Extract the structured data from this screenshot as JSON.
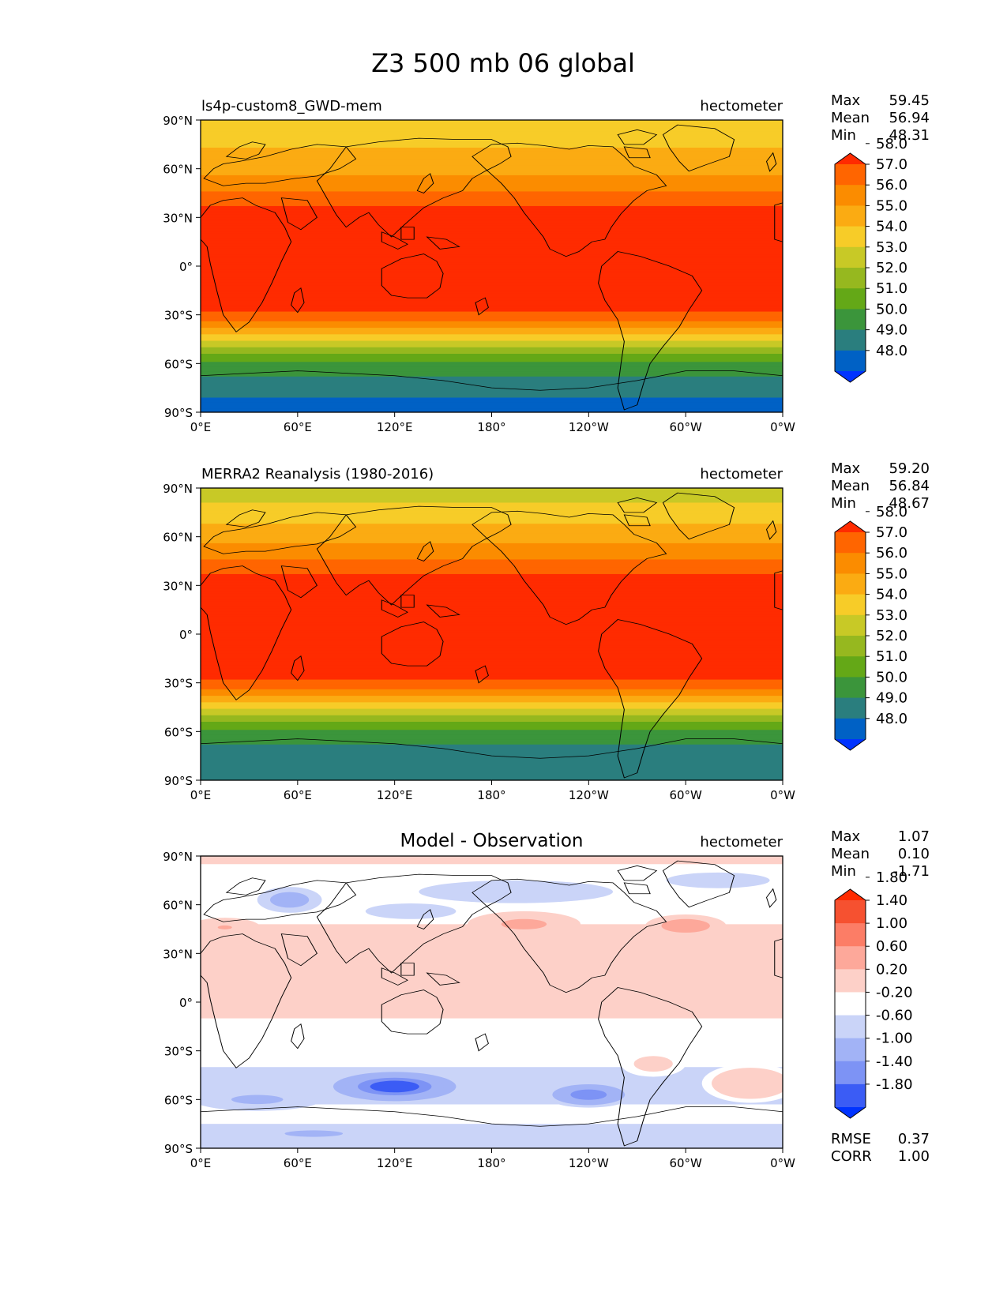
{
  "figure_title": "Z3 500 mb 06 global",
  "colors": {
    "abs_levels": [
      "#0033ff",
      "#0061c5",
      "#2a7e7e",
      "#3b953b",
      "#64a817",
      "#96b81f",
      "#c8c926",
      "#f7cc28",
      "#fbab12",
      "#fb8c00",
      "#ff6500",
      "#ff2b00"
    ],
    "diff_levels": [
      "#0033ff",
      "#3b5cf5",
      "#7d93f5",
      "#a2b3f6",
      "#cad4f8",
      "#ffffff",
      "#fdd0c8",
      "#fda89a",
      "#fc7d66",
      "#f65130",
      "#ff2b00"
    ],
    "coast": "#000000"
  },
  "chart_data": [
    {
      "type": "contour-map",
      "name": "model",
      "title_left": "ls4p-custom8_GWD-mem",
      "title_center": "",
      "units": "hectometer",
      "stats": [
        {
          "label": "Max",
          "value": "59.45"
        },
        {
          "label": "Mean",
          "value": "56.94"
        },
        {
          "label": "Min",
          "value": "48.31"
        }
      ],
      "extra_stats": [],
      "colorbar_labels": [
        "48.0",
        "49.0",
        "50.0",
        "51.0",
        "52.0",
        "53.0",
        "54.0",
        "55.0",
        "56.0",
        "57.0",
        "58.0"
      ],
      "xticks": [
        "0°E",
        "60°E",
        "120°E",
        "180°",
        "120°W",
        "60°W",
        "0°W"
      ],
      "yticks": [
        "90°N",
        "60°N",
        "30°N",
        "0°",
        "30°S",
        "60°S",
        "90°S"
      ],
      "lat_band_values": [
        {
          "lat": 90,
          "value": 54.5
        },
        {
          "lat": 75,
          "value": 54.9
        },
        {
          "lat": 60,
          "value": 55.6
        },
        {
          "lat": 50,
          "value": 56.6
        },
        {
          "lat": 40,
          "value": 57.7
        },
        {
          "lat": 30,
          "value": 58.6
        },
        {
          "lat": 0,
          "value": 58.7
        },
        {
          "lat": -25,
          "value": 58.4
        },
        {
          "lat": -32,
          "value": 57.4
        },
        {
          "lat": -40,
          "value": 55.5
        },
        {
          "lat": -48,
          "value": 53.5
        },
        {
          "lat": -56,
          "value": 51.5
        },
        {
          "lat": -65,
          "value": 50.2
        },
        {
          "lat": -75,
          "value": 49.5
        },
        {
          "lat": -82,
          "value": 48.9
        },
        {
          "lat": -90,
          "value": 48.5
        }
      ]
    },
    {
      "type": "contour-map",
      "name": "observation",
      "title_left": "MERRA2 Reanalysis (1980-2016)",
      "title_center": "",
      "units": "hectometer",
      "stats": [
        {
          "label": "Max",
          "value": "59.20"
        },
        {
          "label": "Mean",
          "value": "56.84"
        },
        {
          "label": "Min",
          "value": "48.67"
        }
      ],
      "extra_stats": [],
      "colorbar_labels": [
        "48.0",
        "49.0",
        "50.0",
        "51.0",
        "52.0",
        "53.0",
        "54.0",
        "55.0",
        "56.0",
        "57.0",
        "58.0"
      ],
      "xticks": [
        "0°E",
        "60°E",
        "120°E",
        "180°",
        "120°W",
        "60°W",
        "0°W"
      ],
      "yticks": [
        "90°N",
        "60°N",
        "30°N",
        "0°",
        "30°S",
        "60°S",
        "90°S"
      ],
      "lat_band_values": [
        {
          "lat": 90,
          "value": 53.4
        },
        {
          "lat": 80,
          "value": 54.1
        },
        {
          "lat": 70,
          "value": 54.8
        },
        {
          "lat": 60,
          "value": 55.6
        },
        {
          "lat": 50,
          "value": 56.6
        },
        {
          "lat": 40,
          "value": 57.7
        },
        {
          "lat": 30,
          "value": 58.6
        },
        {
          "lat": 0,
          "value": 58.7
        },
        {
          "lat": -25,
          "value": 58.4
        },
        {
          "lat": -32,
          "value": 57.4
        },
        {
          "lat": -40,
          "value": 55.5
        },
        {
          "lat": -48,
          "value": 53.5
        },
        {
          "lat": -56,
          "value": 51.5
        },
        {
          "lat": -65,
          "value": 50.2
        },
        {
          "lat": -75,
          "value": 49.6
        },
        {
          "lat": -90,
          "value": 49.4
        }
      ]
    },
    {
      "type": "contour-map",
      "name": "difference",
      "title_left": "",
      "title_center": "Model - Observation",
      "units": "hectometer",
      "stats": [
        {
          "label": "Max",
          "value": "1.07"
        },
        {
          "label": "Mean",
          "value": "0.10"
        },
        {
          "label": "Min",
          "value": "-1.71"
        }
      ],
      "extra_stats": [
        {
          "label": "RMSE",
          "value": "0.37"
        },
        {
          "label": "CORR",
          "value": "1.00"
        }
      ],
      "colorbar_labels": [
        "-1.80",
        "-1.40",
        "-1.00",
        "-0.60",
        "-0.20",
        "0.20",
        "0.60",
        "1.00",
        "1.40",
        "1.80"
      ],
      "xticks": [
        "0°E",
        "60°E",
        "120°E",
        "180°",
        "120°W",
        "60°W",
        "0°W"
      ],
      "yticks": [
        "90°N",
        "60°N",
        "30°N",
        "0°",
        "30°S",
        "60°S",
        "90°S"
      ],
      "lat_band_values": [
        {
          "lat": 90,
          "value": 0.3
        },
        {
          "lat": 75,
          "value": 0.0
        },
        {
          "lat": 55,
          "value": 0.1
        },
        {
          "lat": 40,
          "value": 0.3
        },
        {
          "lat": 20,
          "value": 0.3
        },
        {
          "lat": 0,
          "value": 0.3
        },
        {
          "lat": -20,
          "value": 0.1
        },
        {
          "lat": -30,
          "value": 0.0
        },
        {
          "lat": -40,
          "value": -0.2
        },
        {
          "lat": -50,
          "value": -0.45
        },
        {
          "lat": -60,
          "value": -0.3
        },
        {
          "lat": -68,
          "value": 0.0
        },
        {
          "lat": -75,
          "value": -0.2
        },
        {
          "lat": -90,
          "value": -0.3
        }
      ],
      "anomalies": [
        {
          "lon": 120,
          "lat": -52,
          "value": -1.75,
          "rlon": 38,
          "rlat": 9
        },
        {
          "lon": 240,
          "lat": -57,
          "value": -1.4,
          "rlon": 28,
          "rlat": 8
        },
        {
          "lon": 35,
          "lat": -60,
          "value": -0.75,
          "rlon": 40,
          "rlat": 7
        },
        {
          "lon": 70,
          "lat": -81,
          "value": -0.75,
          "rlon": 45,
          "rlat": 5
        },
        {
          "lon": 55,
          "lat": 63,
          "value": -1.0,
          "rlon": 20,
          "rlat": 8
        },
        {
          "lon": 130,
          "lat": 56,
          "value": -0.4,
          "rlon": 35,
          "rlat": 6
        },
        {
          "lon": 195,
          "lat": 68,
          "value": -0.6,
          "rlon": 60,
          "rlat": 7
        },
        {
          "lon": 320,
          "lat": 75,
          "value": -0.4,
          "rlon": 40,
          "rlat": 6
        },
        {
          "lon": 200,
          "lat": 48,
          "value": 0.85,
          "rlon": 35,
          "rlat": 8
        },
        {
          "lon": 300,
          "lat": 47,
          "value": 0.9,
          "rlon": 25,
          "rlat": 7
        },
        {
          "lon": 15,
          "lat": 46,
          "value": 0.65,
          "rlon": 22,
          "rlat": 6
        },
        {
          "lon": 340,
          "lat": -50,
          "value": 0.4,
          "rlon": 30,
          "rlat": 12
        },
        {
          "lon": 280,
          "lat": -38,
          "value": 0.3,
          "rlon": 20,
          "rlat": 8
        }
      ]
    }
  ]
}
